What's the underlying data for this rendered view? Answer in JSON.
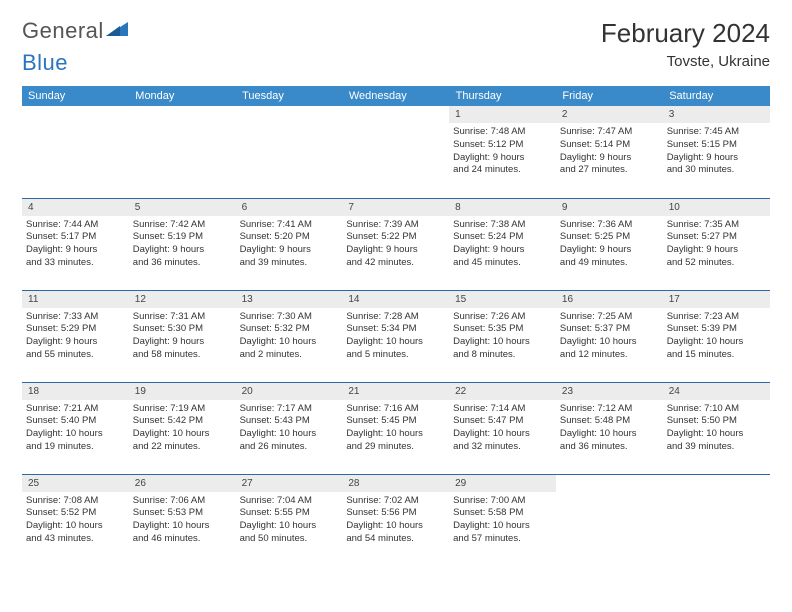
{
  "logo": {
    "text1": "General",
    "text2": "Blue"
  },
  "title": "February 2024",
  "location": "Tovste, Ukraine",
  "colors": {
    "header_bg": "#3a8ac9",
    "row_divider": "#2a6aa8",
    "daynum_bg": "#ececec",
    "logo_blue": "#2a75bb"
  },
  "day_headers": [
    "Sunday",
    "Monday",
    "Tuesday",
    "Wednesday",
    "Thursday",
    "Friday",
    "Saturday"
  ],
  "weeks": [
    [
      null,
      null,
      null,
      null,
      {
        "n": "1",
        "sunrise": "7:48 AM",
        "sunset": "5:12 PM",
        "dh": "9",
        "dm": "24"
      },
      {
        "n": "2",
        "sunrise": "7:47 AM",
        "sunset": "5:14 PM",
        "dh": "9",
        "dm": "27"
      },
      {
        "n": "3",
        "sunrise": "7:45 AM",
        "sunset": "5:15 PM",
        "dh": "9",
        "dm": "30"
      }
    ],
    [
      {
        "n": "4",
        "sunrise": "7:44 AM",
        "sunset": "5:17 PM",
        "dh": "9",
        "dm": "33"
      },
      {
        "n": "5",
        "sunrise": "7:42 AM",
        "sunset": "5:19 PM",
        "dh": "9",
        "dm": "36"
      },
      {
        "n": "6",
        "sunrise": "7:41 AM",
        "sunset": "5:20 PM",
        "dh": "9",
        "dm": "39"
      },
      {
        "n": "7",
        "sunrise": "7:39 AM",
        "sunset": "5:22 PM",
        "dh": "9",
        "dm": "42"
      },
      {
        "n": "8",
        "sunrise": "7:38 AM",
        "sunset": "5:24 PM",
        "dh": "9",
        "dm": "45"
      },
      {
        "n": "9",
        "sunrise": "7:36 AM",
        "sunset": "5:25 PM",
        "dh": "9",
        "dm": "49"
      },
      {
        "n": "10",
        "sunrise": "7:35 AM",
        "sunset": "5:27 PM",
        "dh": "9",
        "dm": "52"
      }
    ],
    [
      {
        "n": "11",
        "sunrise": "7:33 AM",
        "sunset": "5:29 PM",
        "dh": "9",
        "dm": "55"
      },
      {
        "n": "12",
        "sunrise": "7:31 AM",
        "sunset": "5:30 PM",
        "dh": "9",
        "dm": "58"
      },
      {
        "n": "13",
        "sunrise": "7:30 AM",
        "sunset": "5:32 PM",
        "dh": "10",
        "dm": "2"
      },
      {
        "n": "14",
        "sunrise": "7:28 AM",
        "sunset": "5:34 PM",
        "dh": "10",
        "dm": "5"
      },
      {
        "n": "15",
        "sunrise": "7:26 AM",
        "sunset": "5:35 PM",
        "dh": "10",
        "dm": "8"
      },
      {
        "n": "16",
        "sunrise": "7:25 AM",
        "sunset": "5:37 PM",
        "dh": "10",
        "dm": "12"
      },
      {
        "n": "17",
        "sunrise": "7:23 AM",
        "sunset": "5:39 PM",
        "dh": "10",
        "dm": "15"
      }
    ],
    [
      {
        "n": "18",
        "sunrise": "7:21 AM",
        "sunset": "5:40 PM",
        "dh": "10",
        "dm": "19"
      },
      {
        "n": "19",
        "sunrise": "7:19 AM",
        "sunset": "5:42 PM",
        "dh": "10",
        "dm": "22"
      },
      {
        "n": "20",
        "sunrise": "7:17 AM",
        "sunset": "5:43 PM",
        "dh": "10",
        "dm": "26"
      },
      {
        "n": "21",
        "sunrise": "7:16 AM",
        "sunset": "5:45 PM",
        "dh": "10",
        "dm": "29"
      },
      {
        "n": "22",
        "sunrise": "7:14 AM",
        "sunset": "5:47 PM",
        "dh": "10",
        "dm": "32"
      },
      {
        "n": "23",
        "sunrise": "7:12 AM",
        "sunset": "5:48 PM",
        "dh": "10",
        "dm": "36"
      },
      {
        "n": "24",
        "sunrise": "7:10 AM",
        "sunset": "5:50 PM",
        "dh": "10",
        "dm": "39"
      }
    ],
    [
      {
        "n": "25",
        "sunrise": "7:08 AM",
        "sunset": "5:52 PM",
        "dh": "10",
        "dm": "43"
      },
      {
        "n": "26",
        "sunrise": "7:06 AM",
        "sunset": "5:53 PM",
        "dh": "10",
        "dm": "46"
      },
      {
        "n": "27",
        "sunrise": "7:04 AM",
        "sunset": "5:55 PM",
        "dh": "10",
        "dm": "50"
      },
      {
        "n": "28",
        "sunrise": "7:02 AM",
        "sunset": "5:56 PM",
        "dh": "10",
        "dm": "54"
      },
      {
        "n": "29",
        "sunrise": "7:00 AM",
        "sunset": "5:58 PM",
        "dh": "10",
        "dm": "57"
      },
      null,
      null
    ]
  ],
  "labels": {
    "sunrise": "Sunrise:",
    "sunset": "Sunset:",
    "daylight": "Daylight:",
    "hours_and": "hours and",
    "minutes": "minutes."
  }
}
